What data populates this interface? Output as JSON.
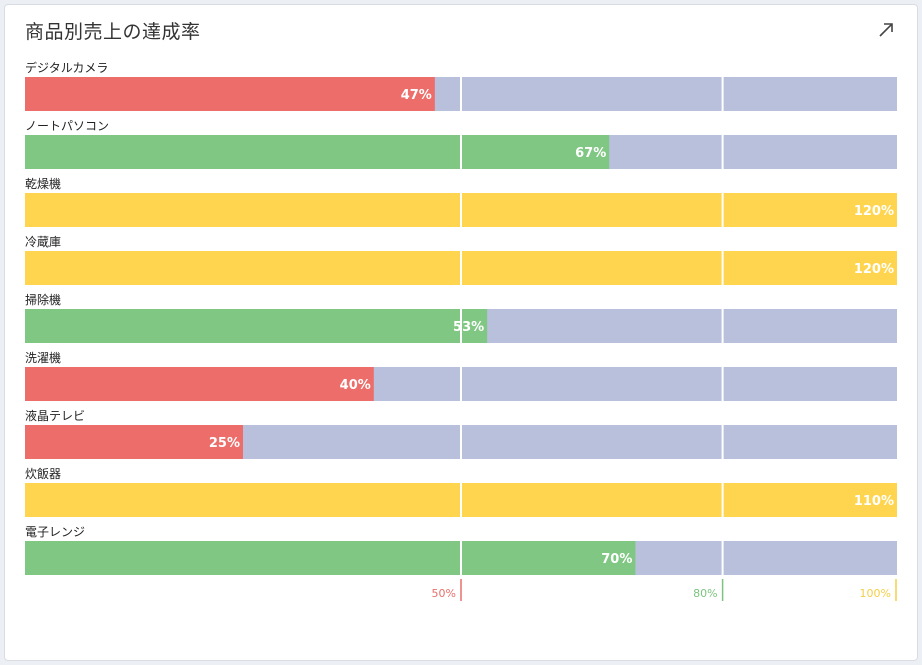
{
  "widget": {
    "title": "商品別売上の達成率",
    "expand_icon": "expand-arrow-icon"
  },
  "chart_data": {
    "type": "bar",
    "orientation": "horizontal",
    "title": "商品別売上の達成率",
    "categories": [
      "デジタルカメラ",
      "ノートパソコン",
      "乾燥機",
      "冷蔵庫",
      "掃除機",
      "洗濯機",
      "液晶テレビ",
      "炊飯器",
      "電子レンジ"
    ],
    "values": [
      47,
      67,
      120,
      120,
      53,
      40,
      25,
      110,
      70
    ],
    "value_labels": [
      "47%",
      "67%",
      "120%",
      "120%",
      "53%",
      "40%",
      "25%",
      "110%",
      "70%"
    ],
    "xlim": [
      0,
      100
    ],
    "thresholds": [
      {
        "value": 50,
        "label": "50%",
        "color": "#e8706b"
      },
      {
        "value": 80,
        "label": "80%",
        "color": "#7cc47f"
      },
      {
        "value": 100,
        "label": "100%",
        "color": "#f4cf47"
      }
    ],
    "colors": {
      "below_50": "#ec6d6a",
      "below_100": "#81c784",
      "at_or_above_100": "#ffd54f",
      "track": "#b9c0dc"
    }
  }
}
